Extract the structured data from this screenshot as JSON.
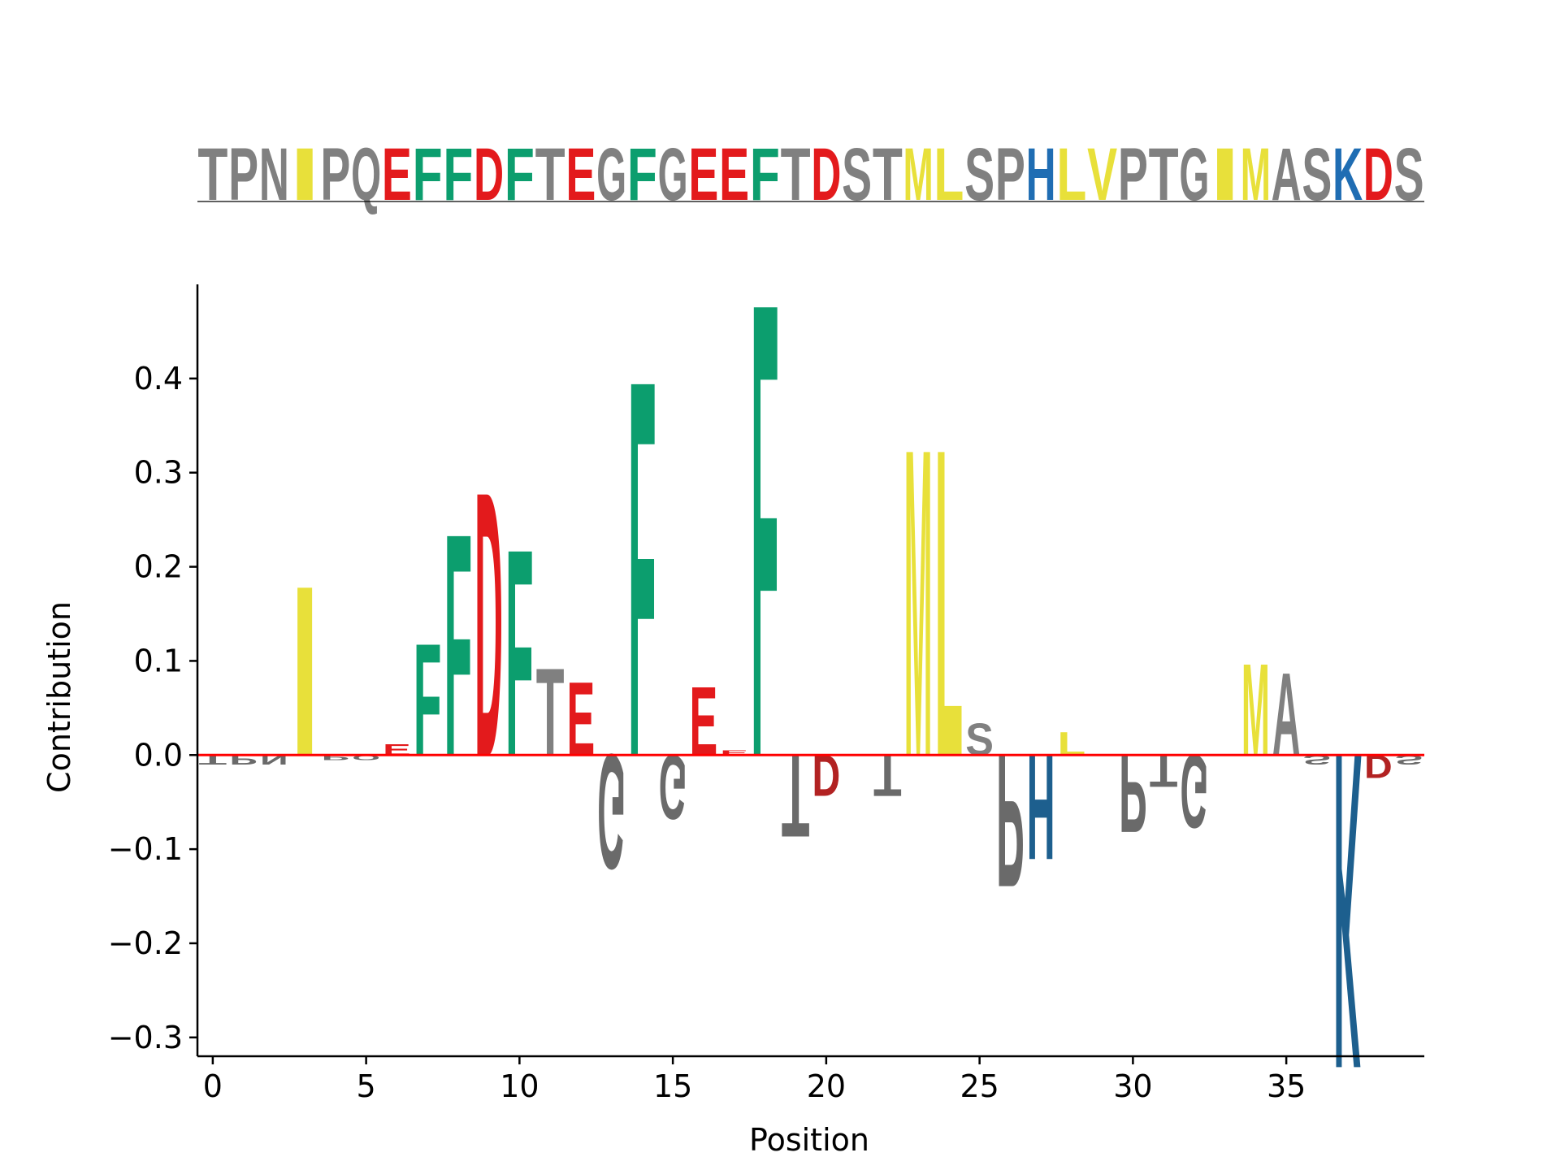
{
  "chart_data": {
    "type": "logo",
    "sequence": "TPNIPQEFFDFTEGFGEEFTDSTMLSPHLVPTGIMASKDS",
    "xlabel": "Position",
    "ylabel": "Contribution",
    "xlim": [
      -0.5,
      39.5
    ],
    "ylim": [
      -0.32,
      0.5
    ],
    "xticks": [
      0,
      5,
      10,
      15,
      20,
      25,
      30,
      35
    ],
    "xtick_labels": [
      "0",
      "5",
      "10",
      "15",
      "20",
      "25",
      "30",
      "35"
    ],
    "yticks": [
      -0.3,
      -0.2,
      -0.1,
      0.0,
      0.1,
      0.2,
      0.3,
      0.4
    ],
    "ytick_labels": [
      "−0.3",
      "−0.2",
      "−0.1",
      "0.0",
      "0.1",
      "0.2",
      "0.3",
      "0.4"
    ],
    "baseline_color": "#ff0000",
    "colors": {
      "hydrophobic": "#e8e03a",
      "aromatic": "#0c9e6e",
      "acidic": "#e31a1c",
      "basic": "#1f6db3",
      "neutral": "#808080",
      "neg_neutral": "#6a6a6a",
      "neg_acidic": "#b22222",
      "neg_basic": "#1d5f8e"
    },
    "contributions": [
      -0.01,
      -0.01,
      -0.01,
      0.185,
      -0.005,
      -0.005,
      0.012,
      0.122,
      0.242,
      0.288,
      0.225,
      0.095,
      0.08,
      -0.125,
      0.41,
      -0.07,
      0.075,
      0.005,
      0.495,
      -0.09,
      -0.045,
      0.0,
      -0.045,
      0.335,
      0.335,
      0.035,
      -0.145,
      -0.115,
      0.025,
      0.0,
      -0.085,
      -0.035,
      -0.08,
      0.0,
      0.1,
      0.09,
      -0.01,
      -0.345,
      -0.025,
      -0.01
    ]
  }
}
